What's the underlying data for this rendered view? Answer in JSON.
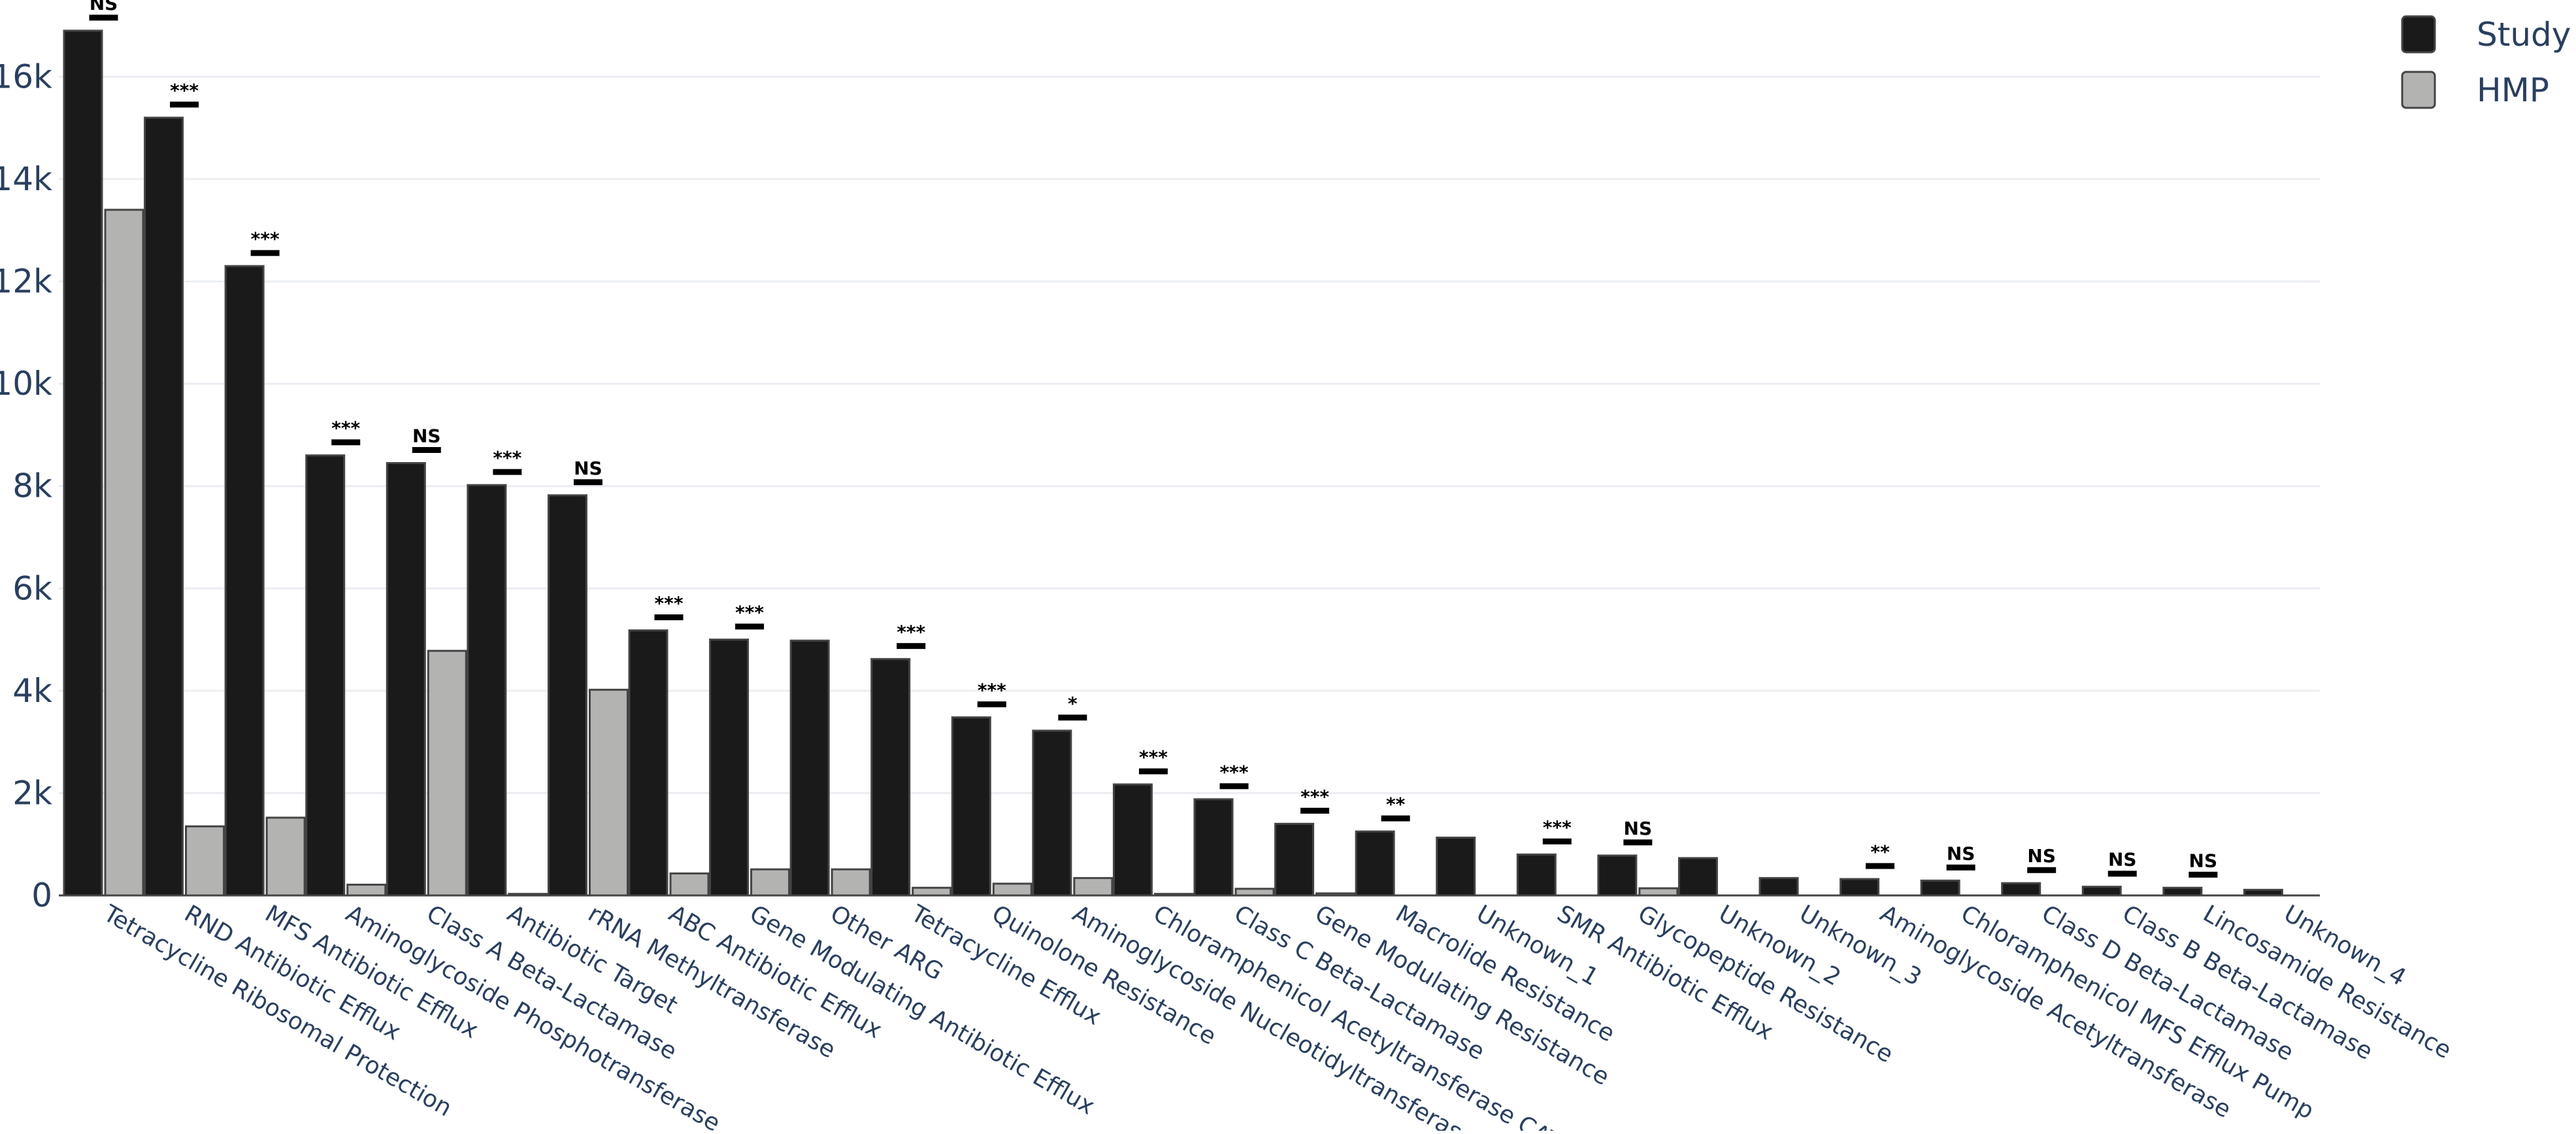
{
  "chart_data": {
    "type": "bar",
    "title": "",
    "xlabel": "",
    "ylabel": "",
    "ylim": [
      0,
      17500
    ],
    "yticks": [
      0,
      2000,
      4000,
      6000,
      8000,
      10000,
      12000,
      14000,
      16000
    ],
    "ytick_labels": [
      "0",
      "2k",
      "4k",
      "6k",
      "8k",
      "10k",
      "12k",
      "14k",
      "16k"
    ],
    "grid": true,
    "legend_position": "top-right",
    "categories": [
      "Tetracycline Ribosomal Protection",
      "RND Antibiotic Efflux",
      "MFS Antibiotic Efflux",
      "Aminoglycoside Phosphotransferase",
      "Class A Beta-Lactamase",
      "Antibiotic Target",
      "rRNA Methyltransferase",
      "ABC Antibiotic Efflux",
      "Gene Modulating Antibiotic Efflux",
      "Other ARG",
      "Tetracycline Efflux",
      "Quinolone Resistance",
      "Aminoglycoside Nucleotidyltransferase",
      "Chloramphenicol Acetyltransferase CAT",
      "Class C Beta-Lactamase",
      "Gene Modulating Resistance",
      "Macrolide Resistance",
      "Unknown_1",
      "SMR Antibiotic Efflux",
      "Glycopeptide Resistance",
      "Unknown_2",
      "Unknown_3",
      "Aminoglycoside Acetyltransferase",
      "Chloramphenicol MFS Efflux Pump",
      "Class D Beta-Lactamase",
      "Class B Beta-Lactamase",
      "Lincosamide Resistance",
      "Unknown_4"
    ],
    "series": [
      {
        "name": "Study",
        "color": "#1a1a1a",
        "values": [
          16900,
          15200,
          12300,
          8600,
          8450,
          8020,
          7820,
          5180,
          5000,
          4980,
          4620,
          3480,
          3220,
          2170,
          1880,
          1400,
          1250,
          1130,
          800,
          780,
          730,
          340,
          320,
          290,
          240,
          170,
          150,
          110
        ]
      },
      {
        "name": "HMP",
        "color": "#b3b4b2",
        "values": [
          13400,
          1350,
          1520,
          210,
          4780,
          30,
          4020,
          430,
          510,
          510,
          150,
          230,
          340,
          30,
          130,
          40,
          0,
          0,
          0,
          140,
          0,
          0,
          0,
          0,
          0,
          0,
          0,
          0
        ]
      }
    ],
    "significance": [
      "NS",
      "***",
      "***",
      "***",
      "NS",
      "***",
      "NS",
      "***",
      "***",
      "",
      "***",
      "***",
      "*",
      "***",
      "***",
      "***",
      "**",
      "",
      "***",
      "NS",
      "",
      "",
      "**",
      "NS",
      "NS",
      "NS",
      "NS",
      ""
    ]
  }
}
